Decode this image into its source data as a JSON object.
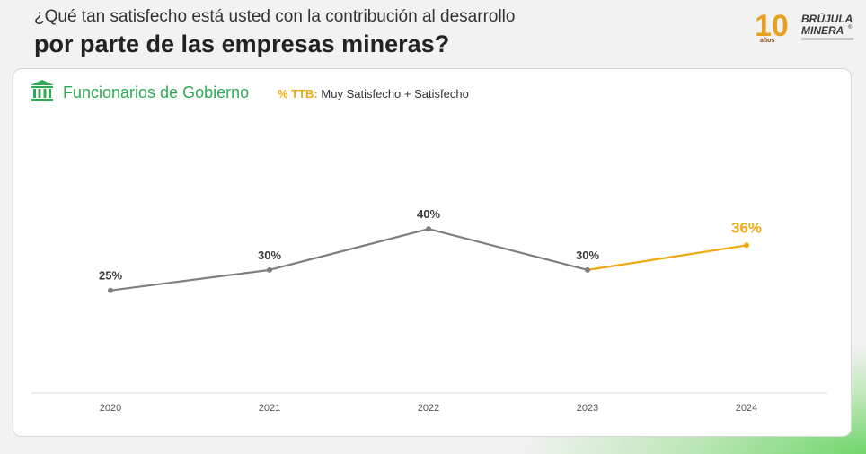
{
  "question": {
    "line1": "¿Qué tan satisfecho está usted con la contribución al desarrollo",
    "line2": "por parte de las empresas mineras?"
  },
  "logo": {
    "number": "10",
    "anos": "años",
    "brand_line1": "BRÚJULA",
    "brand_line2": "MINERA",
    "registered": "®"
  },
  "panel": {
    "icon": "government-building-icon",
    "title": "Funcionarios de Gobierno",
    "ttb_label": "% TTB:",
    "ttb_desc": "Muy Satisfecho + Satisfecho"
  },
  "chart_data": {
    "type": "line",
    "categories": [
      "2020",
      "2021",
      "2022",
      "2023",
      "2024"
    ],
    "values": [
      25,
      30,
      40,
      30,
      36
    ],
    "data_labels": [
      "25%",
      "30%",
      "40%",
      "30%",
      "36%"
    ],
    "highlight_index": 4,
    "colors": {
      "main": "#7f7f7f",
      "highlight": "#f0a90f",
      "axis": "#d9d9d9"
    },
    "ylim": [
      0,
      70
    ],
    "grid": false
  }
}
